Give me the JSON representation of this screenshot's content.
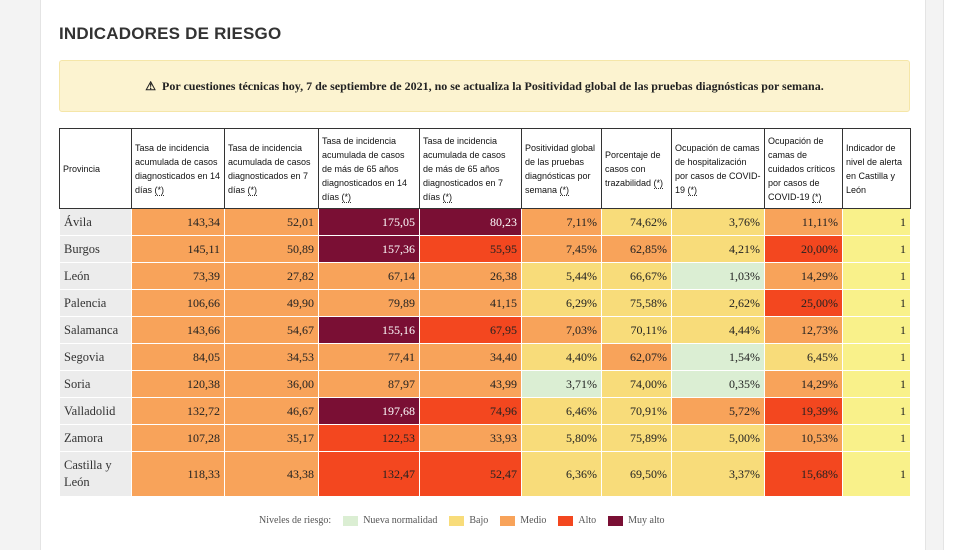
{
  "title": "INDICADORES DE RIESGO",
  "alert": {
    "icon": "warning-icon",
    "text": "Por cuestiones técnicas hoy, 7 de septiembre de 2021, no se actualiza la Positividad global de las pruebas diagnósticas por semana."
  },
  "table": {
    "headers": [
      "Provincia",
      "Tasa de incidencia acumulada de casos diagnosticados en 14 días",
      "Tasa de incidencia acumulada de casos diagnosticados en 7 días",
      "Tasa de incidencia acumulada de casos de más de 65 años diagnosticados en 14 días",
      "Tasa de incidencia acumulada de casos de más de 65 años diagnosticados en 7 días",
      "Positividad global de las pruebas diagnósticas por semana",
      "Porcentaje de casos con trazabilidad",
      "Ocupación de camas de hospitalización por casos de COVID-19",
      "Ocupación de camas de cuidados críticos por casos de COVID-19",
      "Indicador de nivel de alerta en Castilla y León"
    ],
    "asterisk": "(*)",
    "rows": [
      {
        "prov": "Ávila",
        "cells": [
          "143,34",
          "52,01",
          "175,05",
          "80,23",
          "7,11%",
          "74,62%",
          "3,76%",
          "11,11%",
          "1"
        ],
        "levels": [
          "medio",
          "medio",
          "muyalto",
          "muyalto",
          "medio",
          "bajo",
          "bajo",
          "medio",
          "ind"
        ]
      },
      {
        "prov": "Burgos",
        "cells": [
          "145,11",
          "50,89",
          "157,36",
          "55,95",
          "7,45%",
          "62,85%",
          "4,21%",
          "20,00%",
          "1"
        ],
        "levels": [
          "medio",
          "medio",
          "muyalto",
          "alto",
          "medio",
          "medio",
          "bajo",
          "alto",
          "ind"
        ]
      },
      {
        "prov": "León",
        "cells": [
          "73,39",
          "27,82",
          "67,14",
          "26,38",
          "5,44%",
          "66,67%",
          "1,03%",
          "14,29%",
          "1"
        ],
        "levels": [
          "medio",
          "medio",
          "medio",
          "medio",
          "bajo",
          "bajo",
          "nn",
          "medio",
          "ind"
        ]
      },
      {
        "prov": "Palencia",
        "cells": [
          "106,66",
          "49,90",
          "79,89",
          "41,15",
          "6,29%",
          "75,58%",
          "2,62%",
          "25,00%",
          "1"
        ],
        "levels": [
          "medio",
          "medio",
          "medio",
          "medio",
          "bajo",
          "bajo",
          "bajo",
          "alto",
          "ind"
        ]
      },
      {
        "prov": "Salamanca",
        "cells": [
          "143,66",
          "54,67",
          "155,16",
          "67,95",
          "7,03%",
          "70,11%",
          "4,44%",
          "12,73%",
          "1"
        ],
        "levels": [
          "medio",
          "medio",
          "muyalto",
          "alto",
          "medio",
          "bajo",
          "bajo",
          "medio",
          "ind"
        ]
      },
      {
        "prov": "Segovia",
        "cells": [
          "84,05",
          "34,53",
          "77,41",
          "34,40",
          "4,40%",
          "62,07%",
          "1,54%",
          "6,45%",
          "1"
        ],
        "levels": [
          "medio",
          "medio",
          "medio",
          "medio",
          "bajo",
          "medio",
          "nn",
          "bajo",
          "ind"
        ]
      },
      {
        "prov": "Soria",
        "cells": [
          "120,38",
          "36,00",
          "87,97",
          "43,99",
          "3,71%",
          "74,00%",
          "0,35%",
          "14,29%",
          "1"
        ],
        "levels": [
          "medio",
          "medio",
          "medio",
          "medio",
          "nn",
          "bajo",
          "nn",
          "medio",
          "ind"
        ]
      },
      {
        "prov": "Valladolid",
        "cells": [
          "132,72",
          "46,67",
          "197,68",
          "74,96",
          "6,46%",
          "70,91%",
          "5,72%",
          "19,39%",
          "1"
        ],
        "levels": [
          "medio",
          "medio",
          "muyalto",
          "alto",
          "bajo",
          "bajo",
          "medio",
          "alto",
          "ind"
        ]
      },
      {
        "prov": "Zamora",
        "cells": [
          "107,28",
          "35,17",
          "122,53",
          "33,93",
          "5,80%",
          "75,89%",
          "5,00%",
          "10,53%",
          "1"
        ],
        "levels": [
          "medio",
          "medio",
          "alto",
          "medio",
          "bajo",
          "bajo",
          "bajo",
          "medio",
          "ind"
        ]
      },
      {
        "prov": "Castilla y León",
        "cells": [
          "118,33",
          "43,38",
          "132,47",
          "52,47",
          "6,36%",
          "69,50%",
          "3,37%",
          "15,68%",
          "1"
        ],
        "levels": [
          "medio",
          "medio",
          "alto",
          "alto",
          "bajo",
          "bajo",
          "bajo",
          "alto",
          "ind"
        ]
      }
    ]
  },
  "legend": {
    "label": "Niveles de riesgo:",
    "items": [
      {
        "label": "Nueva normalidad",
        "color": "#dbeed3"
      },
      {
        "label": "Bajo",
        "color": "#f8dc7a"
      },
      {
        "label": "Medio",
        "color": "#f8a35a"
      },
      {
        "label": "Alto",
        "color": "#f3471f"
      },
      {
        "label": "Muy alto",
        "color": "#7a0f34"
      }
    ]
  }
}
